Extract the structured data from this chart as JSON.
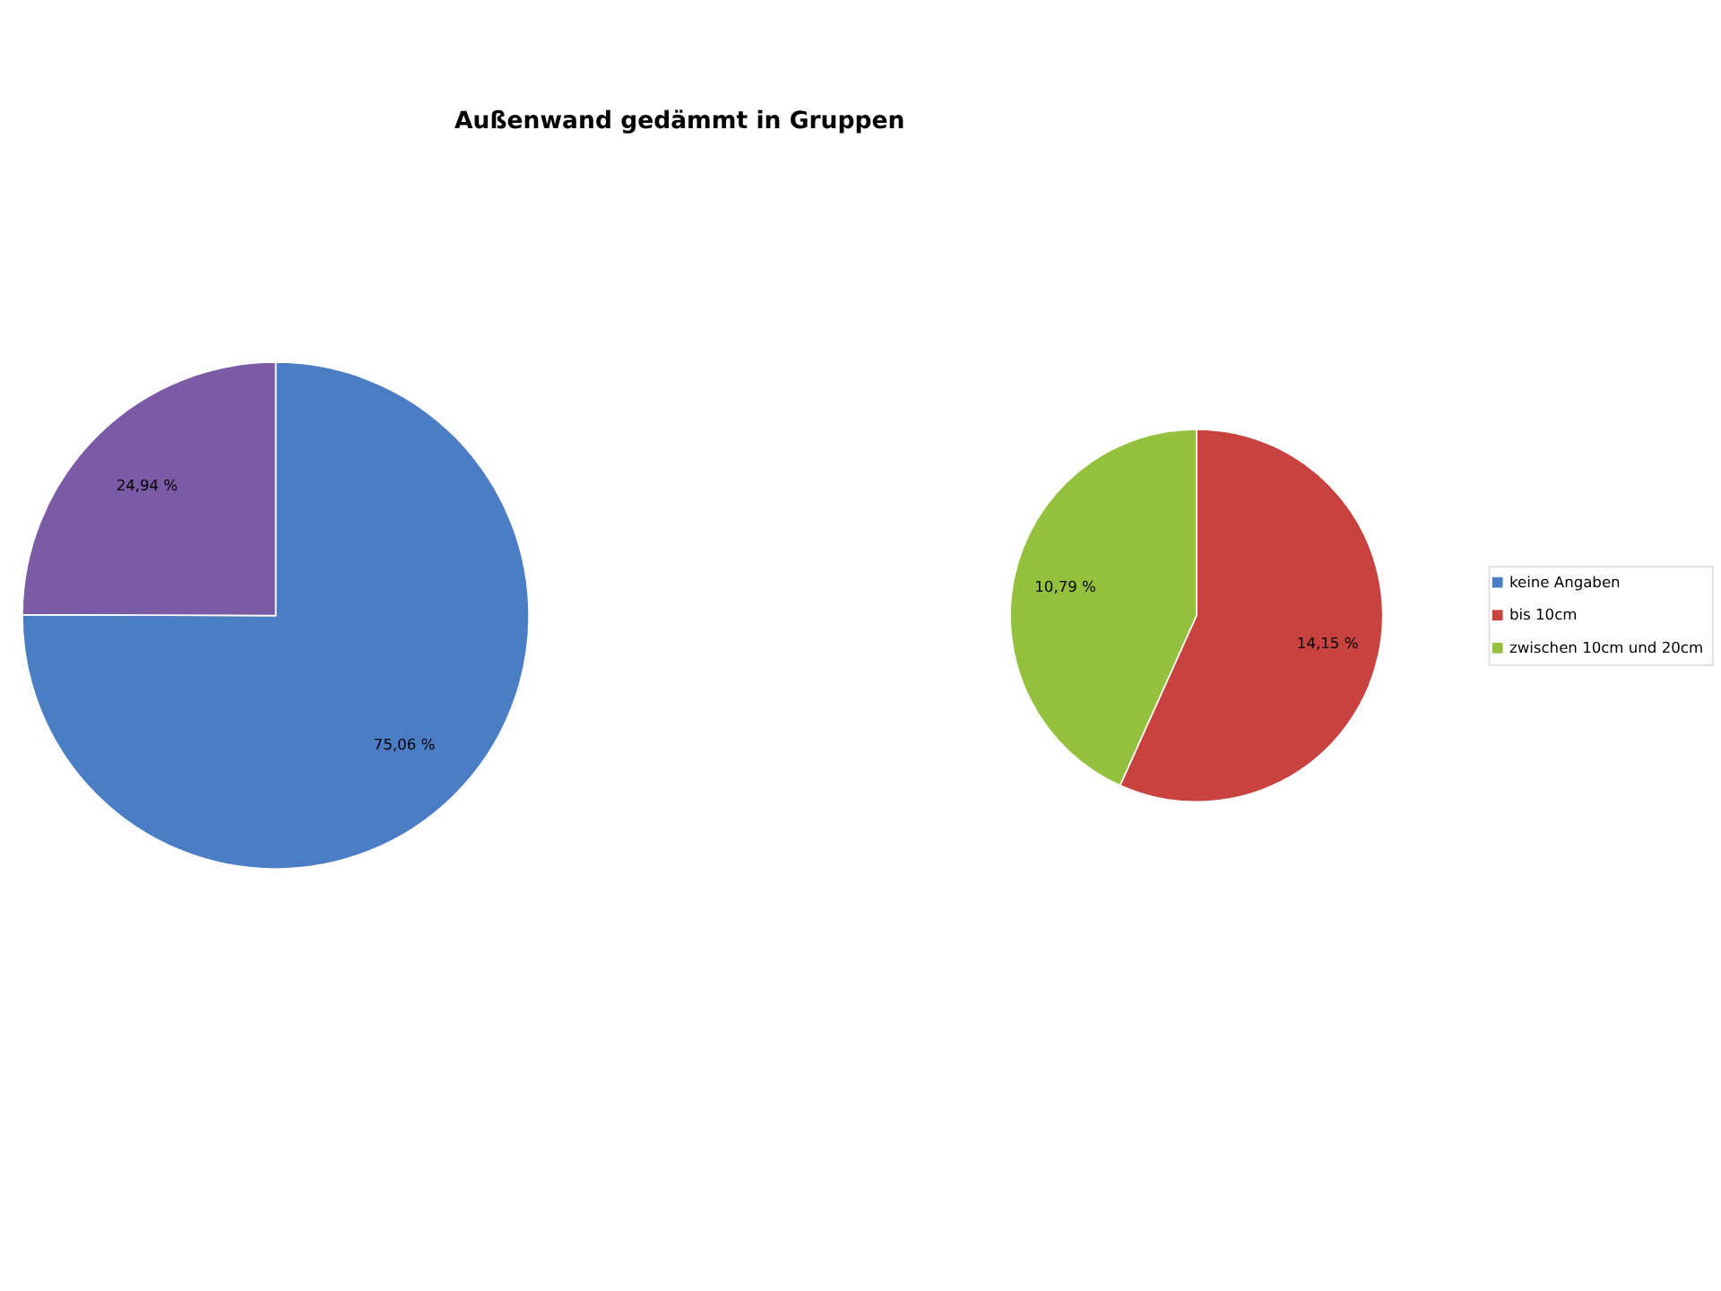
{
  "chart_data": [
    {
      "type": "pie",
      "title": "Außenwand gedämmt in Gruppen",
      "categories": [
        "keine Angaben",
        null
      ],
      "values": [
        75.06,
        24.94
      ],
      "colors": [
        "#4a7dc4",
        "#7b5aa6"
      ],
      "value_labels": [
        "75,06 %",
        "24,94 %"
      ]
    },
    {
      "type": "pie",
      "categories": [
        "bis 10cm",
        "zwischen 10cm und 20cm"
      ],
      "values": [
        14.15,
        10.79
      ],
      "colors": [
        "#c84240",
        "#93c13e"
      ],
      "value_labels": [
        "14,15 %",
        "10,79 %"
      ],
      "legend": "right"
    }
  ]
}
